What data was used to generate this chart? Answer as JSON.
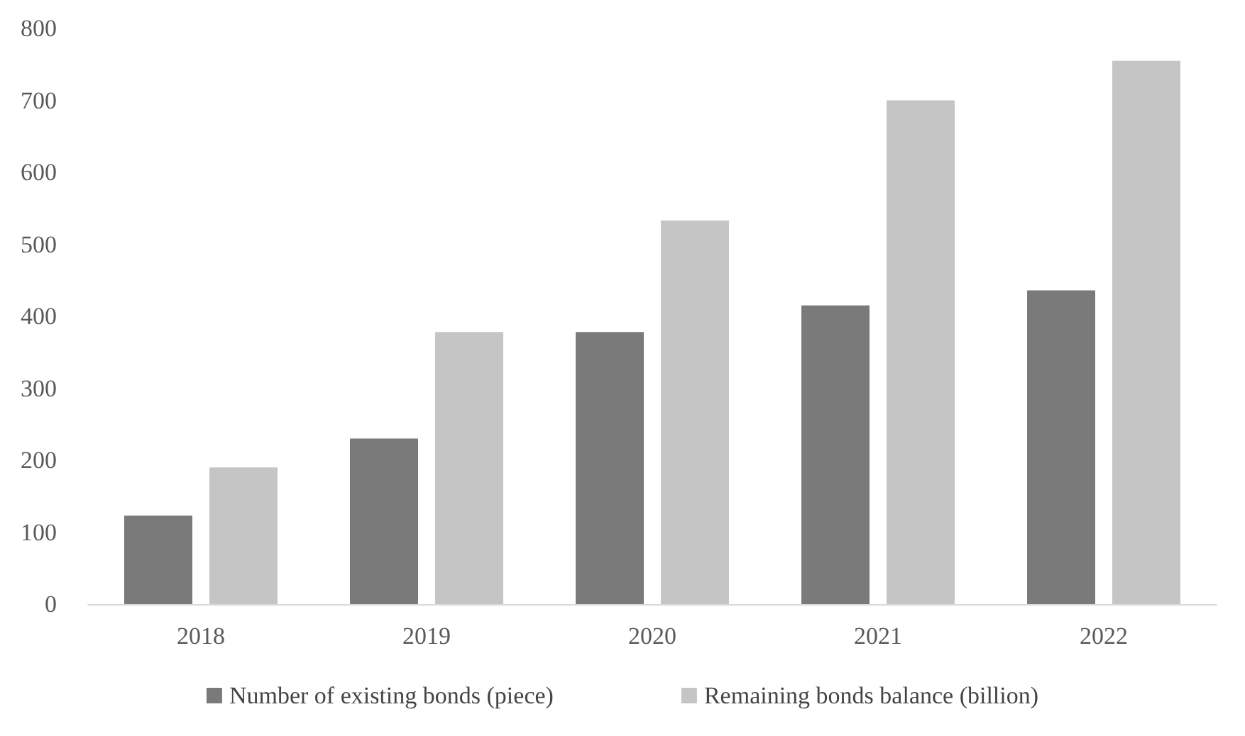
{
  "chart_data": {
    "type": "bar",
    "categories": [
      "2018",
      "2019",
      "2020",
      "2021",
      "2022"
    ],
    "series": [
      {
        "name": "Number of existing bonds (piece)",
        "color": "#7a7a7a",
        "values": [
          123,
          230,
          378,
          415,
          436
        ]
      },
      {
        "name": "Remaining bonds balance (billion)",
        "color": "#c4c5c4",
        "values": [
          190,
          378,
          533,
          700,
          755
        ]
      }
    ],
    "ylim": [
      0,
      800
    ],
    "yticks": [
      0,
      100,
      200,
      300,
      400,
      500,
      600,
      700,
      800
    ],
    "grid": false,
    "legend": "bottom"
  }
}
